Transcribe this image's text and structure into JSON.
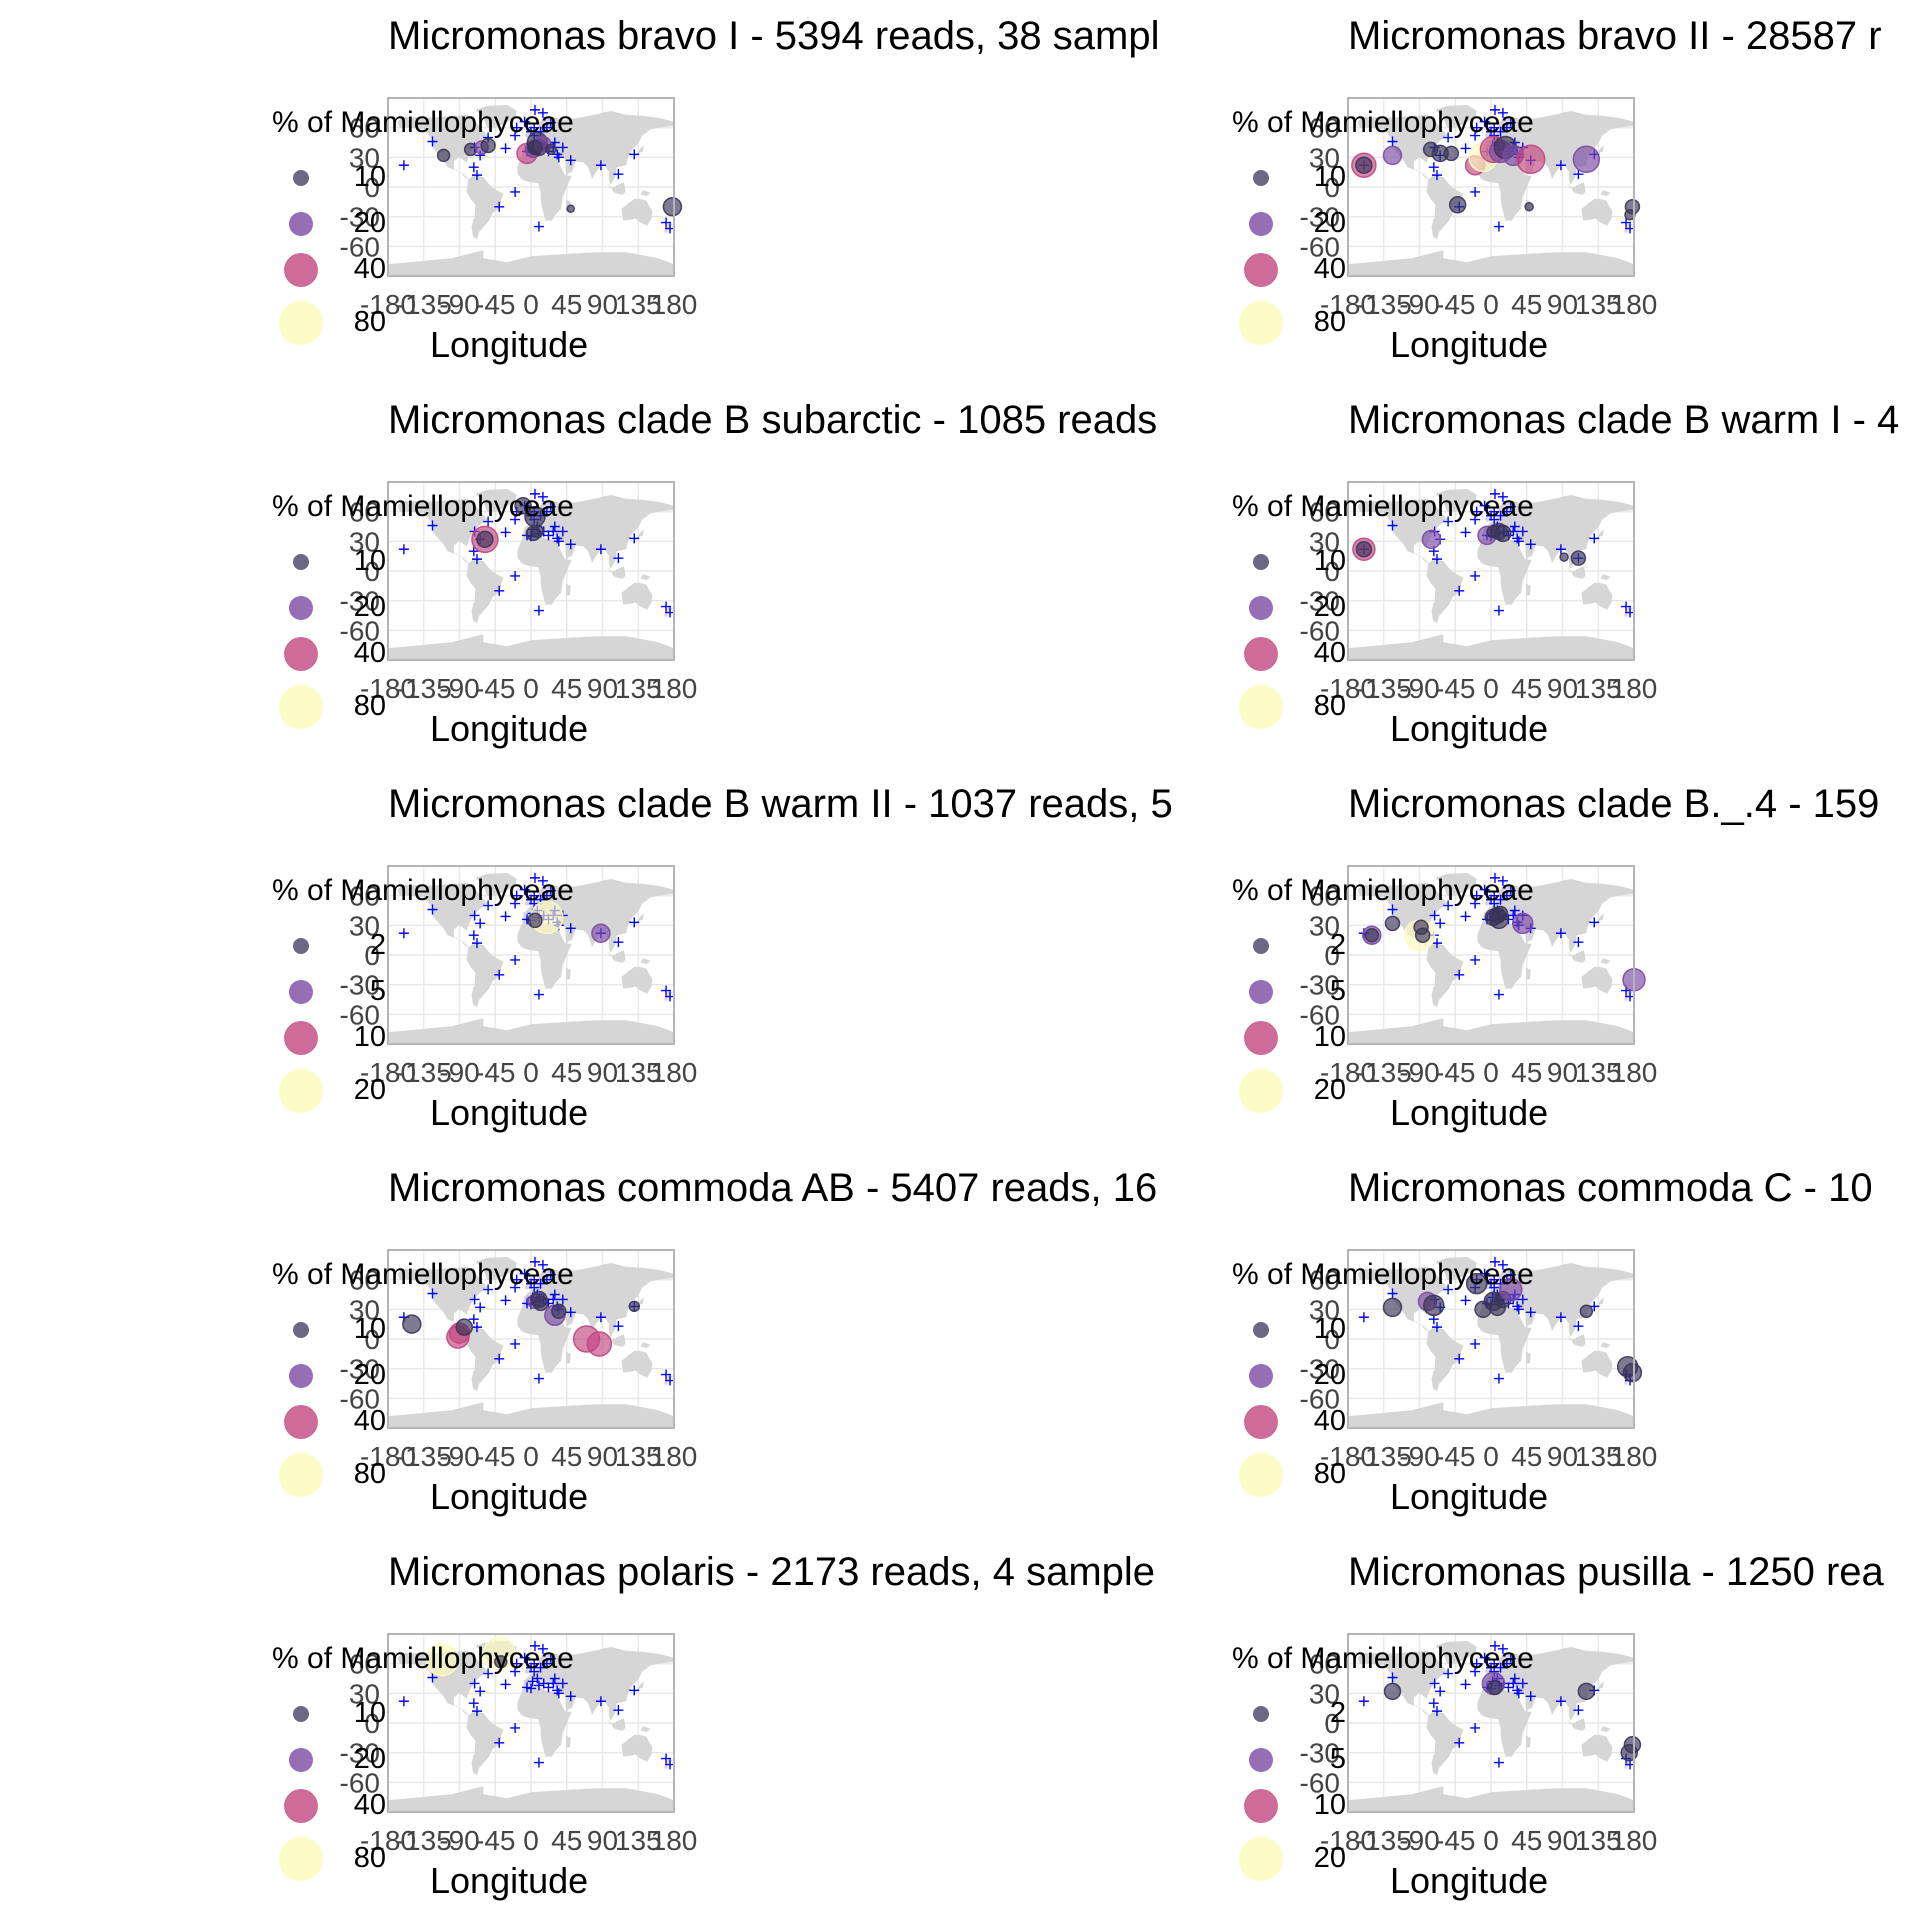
{
  "figure": {
    "legend_title": "% of Mamiellophyceae",
    "x_axis_label": "Longitude",
    "x_ticks": [
      "-180",
      "-135",
      "-90",
      "-45",
      "0",
      "45",
      "90",
      "135",
      "180"
    ],
    "y_ticks": [
      "-60",
      "-30",
      "0",
      "30",
      "60"
    ],
    "xlim": [
      -180,
      180
    ],
    "ylim": [
      -90,
      90
    ],
    "grid": true,
    "sample_marker": "+",
    "colors": {
      "land": "#d6d6d6",
      "grid": "#e8e8e8",
      "panel_border": "#b5b5b5",
      "sample_marker": "#0000ff",
      "legend_levels": [
        "#3b3458",
        "#7b4aa3",
        "#c2467f",
        "#fdfbbf"
      ]
    }
  },
  "samples": [
    [
      -160,
      22
    ],
    [
      -124,
      46
    ],
    [
      -71,
      40
    ],
    [
      -64,
      32
    ],
    [
      -72,
      20
    ],
    [
      -68,
      12
    ],
    [
      -40,
      -20
    ],
    [
      -54,
      50
    ],
    [
      -32,
      39
    ],
    [
      -20,
      52
    ],
    [
      -8,
      66
    ],
    [
      -18,
      60
    ],
    [
      0,
      56
    ],
    [
      4,
      52
    ],
    [
      8,
      45
    ],
    [
      2,
      42
    ],
    [
      10,
      38
    ],
    [
      16,
      40
    ],
    [
      22,
      36
    ],
    [
      28,
      40
    ],
    [
      33,
      33
    ],
    [
      35,
      30
    ],
    [
      4,
      60
    ],
    [
      12,
      56
    ],
    [
      20,
      60
    ],
    [
      25,
      65
    ],
    [
      15,
      75
    ],
    [
      5,
      78
    ],
    [
      0,
      35
    ],
    [
      -5,
      36
    ],
    [
      30,
      45
    ],
    [
      40,
      40
    ],
    [
      50,
      27
    ],
    [
      88,
      22
    ],
    [
      110,
      13
    ],
    [
      130,
      33
    ],
    [
      170,
      -36
    ],
    [
      175,
      -42
    ],
    [
      -20,
      -5
    ],
    [
      10,
      -40
    ]
  ],
  "chart_data": [
    {
      "type": "scatter",
      "title": "Micromonas bravo I - 5394 reads, 38 sampl",
      "size_legend": [
        "10",
        "20",
        "40",
        "80"
      ],
      "points": [
        [
          -110,
          32,
          8,
          0
        ],
        [
          -76,
          38,
          8,
          0
        ],
        [
          -62,
          40,
          9,
          1
        ],
        [
          -54,
          42,
          10,
          0
        ],
        [
          -5,
          34,
          16,
          2
        ],
        [
          3,
          38,
          12,
          1
        ],
        [
          8,
          45,
          16,
          0
        ],
        [
          10,
          40,
          12,
          0
        ],
        [
          15,
          43,
          12,
          1
        ],
        [
          5,
          40,
          10,
          0
        ],
        [
          25,
          38,
          6,
          0
        ],
        [
          178,
          -20,
          14,
          0
        ],
        [
          50,
          -22,
          3,
          0
        ]
      ]
    },
    {
      "type": "scatter",
      "title": "Micromonas bravo II - 28587 r",
      "size_legend": [
        "10",
        "20",
        "40",
        "80"
      ],
      "points": [
        [
          -160,
          22,
          20,
          2
        ],
        [
          -160,
          22,
          12,
          0
        ],
        [
          -124,
          32,
          14,
          1
        ],
        [
          -76,
          38,
          10,
          0
        ],
        [
          -64,
          34,
          12,
          0
        ],
        [
          -50,
          34,
          10,
          0
        ],
        [
          -20,
          22,
          15,
          2
        ],
        [
          -10,
          30,
          24,
          3
        ],
        [
          3,
          38,
          22,
          2
        ],
        [
          12,
          36,
          18,
          1
        ],
        [
          18,
          40,
          18,
          0
        ],
        [
          28,
          32,
          16,
          1
        ],
        [
          50,
          28,
          24,
          2
        ],
        [
          120,
          28,
          22,
          1
        ],
        [
          -42,
          -18,
          12,
          0
        ],
        [
          178,
          -20,
          10,
          0
        ],
        [
          175,
          -28,
          6,
          0
        ],
        [
          48,
          -20,
          4,
          0
        ]
      ]
    },
    {
      "type": "scatter",
      "title": "Micromonas clade B  subarctic - 1085 reads",
      "size_legend": [
        "10",
        "20",
        "40",
        "80"
      ],
      "points": [
        [
          -58,
          32,
          22,
          2
        ],
        [
          -58,
          32,
          12,
          0
        ],
        [
          -10,
          66,
          12,
          0
        ],
        [
          5,
          55,
          16,
          0
        ],
        [
          3,
          38,
          10,
          0
        ],
        [
          8,
          40,
          8,
          0
        ]
      ]
    },
    {
      "type": "scatter",
      "title": "Micromonas clade B warm I - 4",
      "size_legend": [
        "10",
        "20",
        "40",
        "80"
      ],
      "points": [
        [
          -160,
          22,
          18,
          2
        ],
        [
          -160,
          22,
          11,
          0
        ],
        [
          -75,
          32,
          14,
          1
        ],
        [
          -5,
          36,
          14,
          1
        ],
        [
          10,
          40,
          12,
          0
        ],
        [
          15,
          38,
          12,
          0
        ],
        [
          3,
          40,
          8,
          0
        ],
        [
          110,
          13,
          10,
          0
        ],
        [
          92,
          14,
          4,
          0
        ]
      ]
    },
    {
      "type": "scatter",
      "title": "Micromonas clade B warm II - 1037 reads, 5",
      "size_legend": [
        "2",
        "5",
        "10",
        "20"
      ],
      "points": [
        [
          20,
          38,
          28,
          3
        ],
        [
          5,
          35,
          10,
          0
        ],
        [
          88,
          22,
          14,
          1
        ]
      ]
    },
    {
      "type": "scatter",
      "title": "Micromonas clade B._.4 - 159",
      "size_legend": [
        "2",
        "5",
        "10",
        "20"
      ],
      "points": [
        [
          -150,
          20,
          14,
          1
        ],
        [
          -150,
          20,
          9,
          0
        ],
        [
          -124,
          32,
          10,
          0
        ],
        [
          -90,
          20,
          26,
          3
        ],
        [
          -86,
          20,
          10,
          0
        ],
        [
          -88,
          28,
          10,
          0
        ],
        [
          3,
          38,
          12,
          0
        ],
        [
          8,
          40,
          12,
          0
        ],
        [
          10,
          36,
          14,
          0
        ],
        [
          12,
          42,
          10,
          0
        ],
        [
          40,
          32,
          16,
          1
        ],
        [
          180,
          -25,
          18,
          1
        ]
      ]
    },
    {
      "type": "scatter",
      "title": "Micromonas commoda AB - 5407 reads, 16",
      "size_legend": [
        "10",
        "20",
        "40",
        "80"
      ],
      "points": [
        [
          -150,
          15,
          14,
          0
        ],
        [
          -92,
          2,
          18,
          2
        ],
        [
          -90,
          6,
          16,
          2
        ],
        [
          -84,
          12,
          12,
          0
        ],
        [
          5,
          38,
          10,
          1
        ],
        [
          10,
          40,
          12,
          0
        ],
        [
          12,
          36,
          10,
          0
        ],
        [
          30,
          24,
          16,
          1
        ],
        [
          70,
          0,
          22,
          2
        ],
        [
          86,
          -5,
          20,
          2
        ],
        [
          130,
          33,
          6,
          0
        ],
        [
          35,
          28,
          10,
          0
        ]
      ]
    },
    {
      "type": "scatter",
      "title": "Micromonas commoda C - 10",
      "size_legend": [
        "10",
        "20",
        "40",
        "80"
      ],
      "points": [
        [
          -124,
          32,
          14,
          0
        ],
        [
          -80,
          38,
          14,
          1
        ],
        [
          -72,
          34,
          16,
          0
        ],
        [
          -18,
          56,
          16,
          0
        ],
        [
          -10,
          30,
          12,
          0
        ],
        [
          3,
          38,
          14,
          0
        ],
        [
          8,
          32,
          12,
          0
        ],
        [
          15,
          40,
          12,
          0
        ],
        [
          25,
          50,
          18,
          1
        ],
        [
          120,
          28,
          8,
          0
        ],
        [
          172,
          -28,
          16,
          0
        ],
        [
          178,
          -34,
          14,
          0
        ]
      ]
    },
    {
      "type": "scatter",
      "title": "Micromonas polaris - 2173 reads, 4 sample",
      "size_legend": [
        "10",
        "20",
        "40",
        "80"
      ],
      "points": [
        [
          -112,
          64,
          28,
          4
        ],
        [
          -40,
          70,
          28,
          3
        ],
        [
          -38,
          62,
          8,
          0
        ]
      ]
    },
    {
      "type": "scatter",
      "title": "Micromonas pusilla - 1250 rea",
      "size_legend": [
        "2",
        "5",
        "10",
        "20"
      ],
      "points": [
        [
          -124,
          32,
          12,
          0
        ],
        [
          3,
          40,
          18,
          1
        ],
        [
          5,
          36,
          10,
          0
        ],
        [
          120,
          32,
          12,
          0
        ],
        [
          178,
          -22,
          12,
          0
        ],
        [
          174,
          -30,
          12,
          0
        ]
      ]
    }
  ]
}
